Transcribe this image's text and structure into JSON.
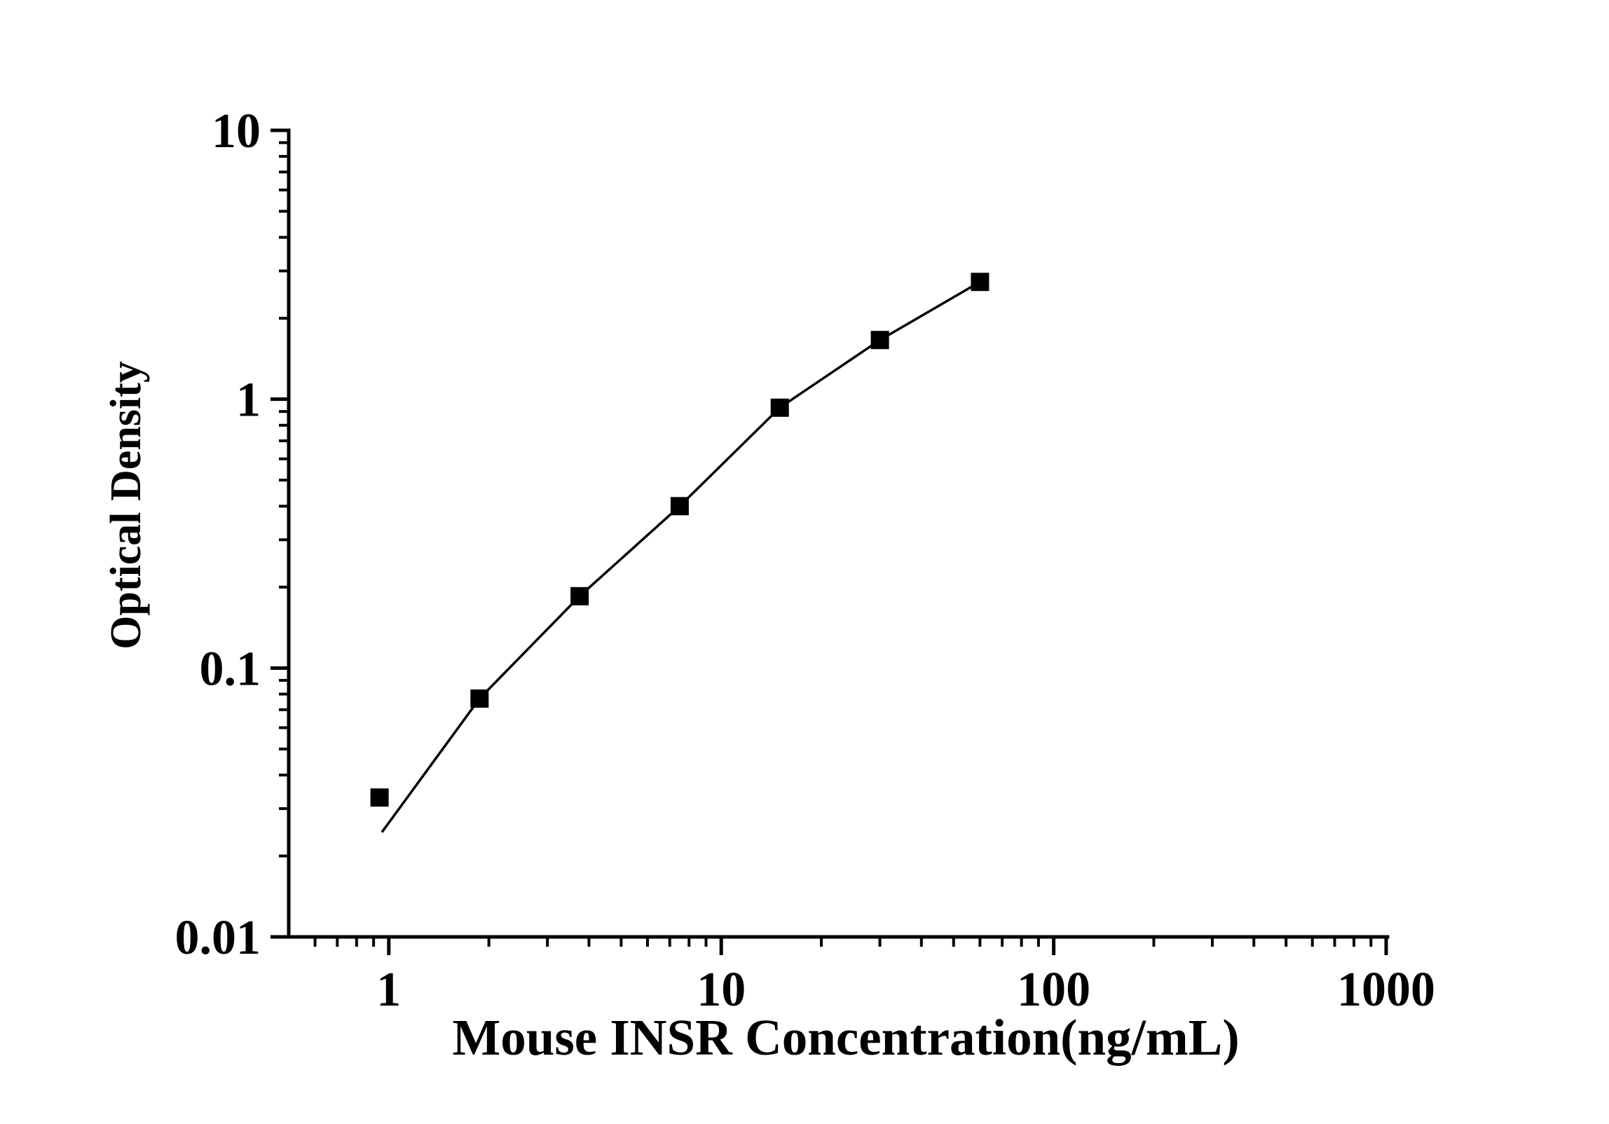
{
  "colors": {
    "foreground": "#000000",
    "background": "#ffffff"
  },
  "chart_data": {
    "type": "scatter",
    "title": "",
    "xlabel": "Mouse INSR Concentration(ng/mL)",
    "ylabel": "Optical Density",
    "x_scale": "log",
    "y_scale": "log",
    "xlim": [
      0.5,
      1000
    ],
    "ylim": [
      0.01,
      10
    ],
    "grid": false,
    "legend": "none",
    "x_major_ticks": [
      1,
      10,
      100,
      1000
    ],
    "x_major_tick_labels": [
      "1",
      "10",
      "100",
      "1000"
    ],
    "y_major_ticks": [
      0.01,
      0.1,
      1,
      10
    ],
    "y_major_tick_labels": [
      "0.01",
      "0.1",
      "1",
      "10"
    ],
    "series": [
      {
        "name": "standard curve data points",
        "marker": "filled-square",
        "marker_color": "#000000",
        "points": [
          {
            "x": 0.938,
            "y": 0.033
          },
          {
            "x": 1.875,
            "y": 0.077
          },
          {
            "x": 3.75,
            "y": 0.185
          },
          {
            "x": 7.5,
            "y": 0.4
          },
          {
            "x": 15,
            "y": 0.93
          },
          {
            "x": 30,
            "y": 1.66
          },
          {
            "x": 60,
            "y": 2.73
          }
        ]
      }
    ],
    "fit_line": {
      "name": "fitted standard curve",
      "color": "#000000",
      "points": [
        {
          "x": 0.953,
          "y": 0.0245
        },
        {
          "x": 1.875,
          "y": 0.077
        },
        {
          "x": 3.75,
          "y": 0.185
        },
        {
          "x": 7.5,
          "y": 0.4
        },
        {
          "x": 15,
          "y": 0.93
        },
        {
          "x": 30,
          "y": 1.66
        },
        {
          "x": 60,
          "y": 2.73
        }
      ]
    }
  }
}
